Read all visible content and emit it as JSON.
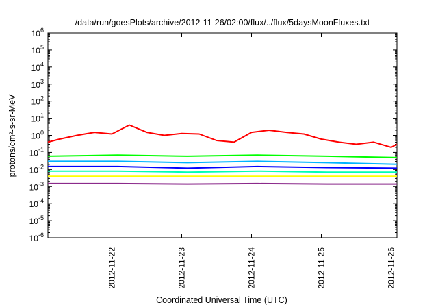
{
  "chart_data": {
    "type": "line",
    "title": "/data/run/goesPlots/archive/2012-11-26/02:00/flux/../flux/5daysMoonFluxes.txt",
    "xlabel": "Coordinated Universal Time (UTC)",
    "ylabel": "protons/cm²-s-sr-MeV",
    "y_scale": "log",
    "ylim": [
      1e-06,
      1000000.0
    ],
    "y_ticks": [
      {
        "base": "10",
        "exp": "-6",
        "value": 1e-06
      },
      {
        "base": "10",
        "exp": "-5",
        "value": 1e-05
      },
      {
        "base": "10",
        "exp": "-4",
        "value": 0.0001
      },
      {
        "base": "10",
        "exp": "-3",
        "value": 0.001
      },
      {
        "base": "10",
        "exp": "-2",
        "value": 0.01
      },
      {
        "base": "10",
        "exp": "-1",
        "value": 0.1
      },
      {
        "base": "10",
        "exp": "0",
        "value": 1
      },
      {
        "base": "10",
        "exp": "1",
        "value": 10
      },
      {
        "base": "10",
        "exp": "2",
        "value": 100
      },
      {
        "base": "10",
        "exp": "3",
        "value": 1000
      },
      {
        "base": "10",
        "exp": "4",
        "value": 10000
      },
      {
        "base": "10",
        "exp": "5",
        "value": 100000
      },
      {
        "base": "10",
        "exp": "6",
        "value": 1000000
      }
    ],
    "xlim": [
      "2012-11-21 02:00",
      "2012-11-26 02:00"
    ],
    "x_ticks": [
      "2012-11-22",
      "2012-11-23",
      "2012-11-24",
      "2012-11-25",
      "2012-11-26"
    ],
    "grid": false,
    "legend": "none",
    "series": [
      {
        "color": "#ff0000",
        "x": [
          "2012-11-21 02:00",
          "2012-11-21 06:00",
          "2012-11-21 12:00",
          "2012-11-21 18:00",
          "2012-11-22 00:00",
          "2012-11-22 06:00",
          "2012-11-22 12:00",
          "2012-11-22 18:00",
          "2012-11-23 00:00",
          "2012-11-23 06:00",
          "2012-11-23 12:00",
          "2012-11-23 18:00",
          "2012-11-24 00:00",
          "2012-11-24 06:00",
          "2012-11-24 12:00",
          "2012-11-24 18:00",
          "2012-11-25 00:00",
          "2012-11-25 06:00",
          "2012-11-25 12:00",
          "2012-11-25 18:00",
          "2012-11-26 00:00",
          "2012-11-26 02:00"
        ],
        "values": [
          0.4,
          0.6,
          1.0,
          1.5,
          1.2,
          4.0,
          1.5,
          1.0,
          1.3,
          1.2,
          0.5,
          0.4,
          1.5,
          2.0,
          1.5,
          1.2,
          0.6,
          0.4,
          0.3,
          0.4,
          0.2,
          0.3
        ]
      },
      {
        "color": "#00ff00",
        "x": [
          "2012-11-21 02:00",
          "2012-11-22 02:00",
          "2012-11-23 02:00",
          "2012-11-24 02:00",
          "2012-11-25 02:00",
          "2012-11-26 02:00"
        ],
        "values": [
          0.06,
          0.07,
          0.06,
          0.07,
          0.06,
          0.05
        ]
      },
      {
        "color": "#00b4ff",
        "x": [
          "2012-11-21 02:00",
          "2012-11-22 02:00",
          "2012-11-23 02:00",
          "2012-11-24 02:00",
          "2012-11-25 02:00",
          "2012-11-26 02:00"
        ],
        "values": [
          0.03,
          0.03,
          0.025,
          0.03,
          0.025,
          0.02
        ]
      },
      {
        "color": "#0000ff",
        "x": [
          "2012-11-21 02:00",
          "2012-11-22 02:00",
          "2012-11-23 02:00",
          "2012-11-24 02:00",
          "2012-11-25 02:00",
          "2012-11-26 02:00"
        ],
        "values": [
          0.015,
          0.015,
          0.012,
          0.015,
          0.013,
          0.012
        ]
      },
      {
        "color": "#00ffb4",
        "x": [
          "2012-11-21 02:00",
          "2012-11-22 02:00",
          "2012-11-23 02:00",
          "2012-11-24 02:00",
          "2012-11-25 02:00",
          "2012-11-26 02:00"
        ],
        "values": [
          0.008,
          0.008,
          0.007,
          0.008,
          0.007,
          0.007
        ]
      },
      {
        "color": "#ffff00",
        "x": [
          "2012-11-21 02:00",
          "2012-11-22 02:00",
          "2012-11-23 02:00",
          "2012-11-24 02:00",
          "2012-11-25 02:00",
          "2012-11-26 02:00"
        ],
        "values": [
          0.004,
          0.004,
          0.004,
          0.004,
          0.004,
          0.004
        ]
      },
      {
        "color": "#8b2a8b",
        "x": [
          "2012-11-21 02:00",
          "2012-11-22 02:00",
          "2012-11-23 02:00",
          "2012-11-24 02:00",
          "2012-11-25 02:00",
          "2012-11-26 02:00"
        ],
        "values": [
          0.0015,
          0.0015,
          0.0014,
          0.0015,
          0.0014,
          0.0014
        ]
      }
    ]
  }
}
